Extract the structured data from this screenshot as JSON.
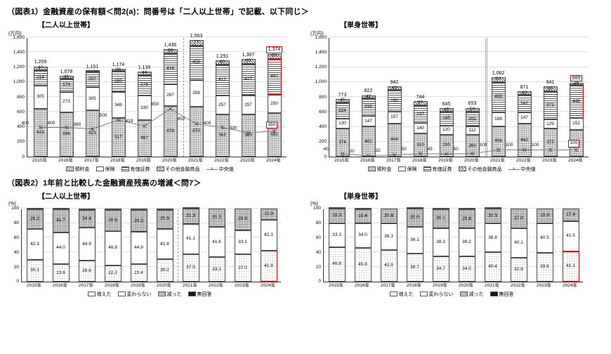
{
  "page": {
    "fig1_title": "（図表1）金融資産の保有額＜問2(a)：問番号は「二人以上世帯」で記載、以下同じ＞",
    "fig2_title": "（図表2）1年前と比較した金融資産残高の増減＜問7＞"
  },
  "colors": {
    "highlight_red": "#e60000",
    "axis": "#333333",
    "gridline": "#dedede"
  },
  "chart_data": [
    {
      "id": "assets-two-or-more",
      "type": "bar",
      "subtype": "stacked-bar-with-median-line",
      "subtitle": "【二人以上世帯】",
      "unit": "(万円)",
      "ylim": [
        0,
        1600
      ],
      "ytick_step": 200,
      "grid": true,
      "legend_position": "bottom",
      "categories": [
        "2015年",
        "2016年",
        "2017年",
        "2018年",
        "2019年",
        "2020年",
        "2021年",
        "2022年",
        "2023年",
        "2024年"
      ],
      "totals": [
        1209,
        1078,
        1151,
        1174,
        1139,
        1436,
        1563,
        1291,
        1307,
        1374
      ],
      "series": [
        {
          "name": "預貯金",
          "key": "deposits",
          "values": [
            643,
            596,
            623,
            517,
            487,
            678,
            670,
            562,
            563,
            582
          ]
        },
        {
          "name": "保険",
          "key": "insurance",
          "values": [
            305,
            273,
            305,
            348,
            330,
            287,
            358,
            257,
            257,
            250
          ]
        },
        {
          "name": "有価証券",
          "key": "securities",
          "values": [
            214,
            174,
            207,
            283,
            278,
            416,
            458,
            412,
            427,
            481
          ]
        },
        {
          "name": "その他金融商品",
          "key": "other",
          "values": [
            47,
            35,
            16,
            26,
            44,
            55,
            77,
            60,
            60,
            60
          ]
        }
      ],
      "median": {
        "name": "中央値",
        "values": [
          400,
          400,
          380,
          500,
          419,
          650,
          450,
          400,
          330,
          350
        ]
      },
      "separator_after": 5,
      "separator_style": "dashed",
      "highlight_last_total": true,
      "highlight_segment": "securities",
      "highlight_median": true
    },
    {
      "id": "assets-single",
      "type": "bar",
      "subtype": "stacked-bar-with-median-line",
      "subtitle": "【単身世帯】",
      "unit": "(万円)",
      "ylim": [
        0,
        1600
      ],
      "ytick_step": 200,
      "grid": true,
      "legend_position": "bottom",
      "categories": [
        "2015年",
        "2016年",
        "2017年",
        "2018年",
        "2019年",
        "2020年",
        "2021年",
        "2022年",
        "2023年",
        "2024年"
      ],
      "totals": [
        773,
        822,
        942,
        744,
        645,
        653,
        1062,
        871,
        941,
        989
      ],
      "series": [
        {
          "name": "預貯金",
          "key": "deposits",
          "values": [
            374,
            401,
            446,
            310,
            295,
            290,
            406,
            442,
            372,
            362
          ]
        },
        {
          "name": "保険",
          "key": "insurance",
          "values": [
            130,
            147,
            157,
            140,
            120,
            112,
            188,
            147,
            129,
            152
          ]
        },
        {
          "name": "有価証券",
          "key": "securities",
          "values": [
            224,
            232,
            290,
            237,
            185,
            201,
            408,
            242,
            371,
            449
          ]
        },
        {
          "name": "その他金融商品",
          "key": "other",
          "values": [
            45,
            42,
            49,
            57,
            45,
            50,
            60,
            40,
            69,
            26
          ]
        }
      ],
      "median": {
        "name": "中央値",
        "values": [
          45,
          20,
          32,
          50,
          45,
          50,
          100,
          100,
          100,
          100
        ]
      },
      "separator_after": 5,
      "separator_style": "double",
      "highlight_last_total": true,
      "highlight_segment": "securities",
      "highlight_median": true
    },
    {
      "id": "change-two-or-more",
      "type": "bar",
      "subtype": "percent-stacked-bar",
      "subtitle": "【二人以上世帯】",
      "unit": "(%)",
      "ylim": [
        0,
        100
      ],
      "ytick_step": 20,
      "grid": true,
      "legend_position": "bottom",
      "categories": [
        "2015年",
        "2016年",
        "2017年",
        "2018年",
        "2019年",
        "2020年",
        "2021年",
        "2022年",
        "2023年",
        "2024年"
      ],
      "series": [
        {
          "name": "増えた",
          "key": "increased",
          "values": [
            30.1,
            23.6,
            28.6,
            22.2,
            23.4,
            30.2,
            37.5,
            33.1,
            37.0,
            41.8
          ]
        },
        {
          "name": "変わらない",
          "key": "unchanged",
          "values": [
            42.3,
            44.0,
            44.9,
            46.8,
            44.9,
            41.8,
            41.1,
            41.6,
            33.1,
            42.3
          ]
        },
        {
          "name": "減った",
          "key": "decreased",
          "values": [
            26.2,
            31.7,
            24.4,
            28.6,
            29.2,
            25.9,
            21.3,
            25.3,
            29.9,
            15.9
          ]
        },
        {
          "name": "無回答",
          "key": "noanswer",
          "show_labels": false,
          "values": [
            1.4,
            0.7,
            2.1,
            2.4,
            2.5,
            2.1,
            0.1,
            0.0,
            0.0,
            0.0
          ]
        }
      ],
      "separator_after": 5,
      "separator_style": "dashed",
      "highlight_segment": "increased"
    },
    {
      "id": "change-single",
      "type": "bar",
      "subtype": "percent-stacked-bar",
      "subtitle": "【単身世帯】",
      "unit": "(%)",
      "ylim": [
        0,
        100
      ],
      "ytick_step": 20,
      "grid": true,
      "legend_position": "bottom",
      "categories": [
        "2015年",
        "2016年",
        "2017年",
        "2018年",
        "2019年",
        "2020年",
        "2021年",
        "2022年",
        "2023年",
        "2024年"
      ],
      "series": [
        {
          "name": "増えた",
          "key": "increased",
          "values": [
            46.8,
            45.8,
            42.9,
            38.7,
            34.7,
            34.5,
            40.4,
            32.9,
            39.6,
            41.1
          ]
        },
        {
          "name": "変わらない",
          "key": "unchanged",
          "values": [
            33.3,
            34.0,
            36.3,
            36.1,
            38.3,
            38.2,
            38.8,
            40.1,
            40.5,
            41.5
          ]
        },
        {
          "name": "減った",
          "key": "decreased",
          "values": [
            19.3,
            19.4,
            20.8,
            25.0,
            26.1,
            25.8,
            20.3,
            27.0,
            19.9,
            17.4
          ]
        },
        {
          "name": "無回答",
          "key": "noanswer",
          "show_labels": false,
          "values": [
            0.6,
            0.8,
            0.0,
            0.2,
            0.9,
            1.5,
            0.5,
            0.0,
            0.0,
            0.0
          ]
        }
      ],
      "highlight_segment": "increased"
    }
  ]
}
